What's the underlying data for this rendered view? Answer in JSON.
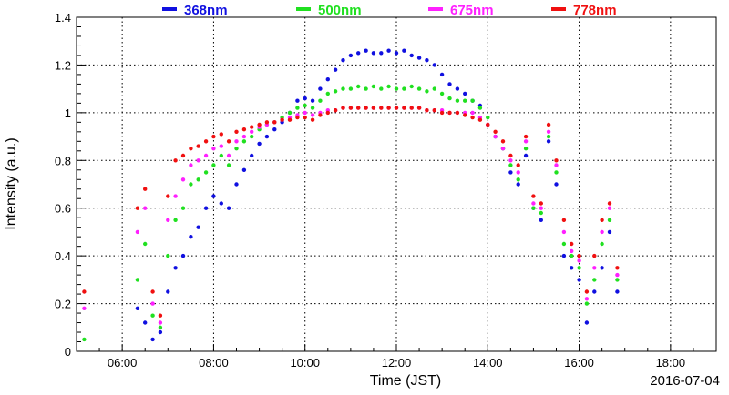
{
  "chart_data": {
    "type": "scatter",
    "xlabel": "Time (JST)",
    "ylabel": "Intensity (a.u.)",
    "date_label": "2016-07-04",
    "xlim": [
      "05:00",
      "19:00"
    ],
    "ylim": [
      0,
      1.4
    ],
    "x_ticks": [
      "06:00",
      "08:00",
      "10:00",
      "12:00",
      "14:00",
      "16:00",
      "18:00"
    ],
    "y_ticks": [
      "0",
      "0.2",
      "0.4",
      "0.6",
      "0.8",
      "1",
      "1.2",
      "1.4"
    ],
    "grid": true,
    "legend_position": "top",
    "series": [
      {
        "name": "368nm",
        "color": "#1010e0",
        "points": [
          [
            "06:20",
            0.18
          ],
          [
            "06:30",
            0.12
          ],
          [
            "06:40",
            0.05
          ],
          [
            "06:50",
            0.08
          ],
          [
            "07:00",
            0.25
          ],
          [
            "07:10",
            0.35
          ],
          [
            "07:20",
            0.4
          ],
          [
            "07:30",
            0.48
          ],
          [
            "07:40",
            0.52
          ],
          [
            "07:50",
            0.6
          ],
          [
            "08:00",
            0.65
          ],
          [
            "08:10",
            0.62
          ],
          [
            "08:20",
            0.6
          ],
          [
            "08:30",
            0.7
          ],
          [
            "08:40",
            0.76
          ],
          [
            "08:50",
            0.82
          ],
          [
            "09:00",
            0.87
          ],
          [
            "09:10",
            0.9
          ],
          [
            "09:20",
            0.93
          ],
          [
            "09:30",
            0.96
          ],
          [
            "09:40",
            1.0
          ],
          [
            "09:50",
            1.05
          ],
          [
            "10:00",
            1.06
          ],
          [
            "10:10",
            1.05
          ],
          [
            "10:20",
            1.1
          ],
          [
            "10:30",
            1.14
          ],
          [
            "10:40",
            1.18
          ],
          [
            "10:50",
            1.22
          ],
          [
            "11:00",
            1.24
          ],
          [
            "11:10",
            1.25
          ],
          [
            "11:20",
            1.26
          ],
          [
            "11:30",
            1.25
          ],
          [
            "11:40",
            1.25
          ],
          [
            "11:50",
            1.26
          ],
          [
            "12:00",
            1.25
          ],
          [
            "12:10",
            1.26
          ],
          [
            "12:20",
            1.24
          ],
          [
            "12:30",
            1.23
          ],
          [
            "12:40",
            1.22
          ],
          [
            "12:50",
            1.2
          ],
          [
            "13:00",
            1.16
          ],
          [
            "13:10",
            1.12
          ],
          [
            "13:20",
            1.1
          ],
          [
            "13:30",
            1.08
          ],
          [
            "13:40",
            1.05
          ],
          [
            "13:50",
            1.03
          ],
          [
            "14:00",
            0.95
          ],
          [
            "14:10",
            0.9
          ],
          [
            "14:20",
            0.85
          ],
          [
            "14:30",
            0.75
          ],
          [
            "14:40",
            0.7
          ],
          [
            "14:50",
            0.82
          ],
          [
            "15:00",
            0.6
          ],
          [
            "15:10",
            0.55
          ],
          [
            "15:20",
            0.88
          ],
          [
            "15:30",
            0.7
          ],
          [
            "15:40",
            0.4
          ],
          [
            "15:50",
            0.35
          ],
          [
            "16:00",
            0.3
          ],
          [
            "16:10",
            0.12
          ],
          [
            "16:20",
            0.25
          ],
          [
            "16:30",
            0.35
          ],
          [
            "16:40",
            0.5
          ],
          [
            "16:50",
            0.25
          ]
        ]
      },
      {
        "name": "500nm",
        "color": "#20e020",
        "points": [
          [
            "05:10",
            0.05
          ],
          [
            "06:20",
            0.3
          ],
          [
            "06:30",
            0.45
          ],
          [
            "06:40",
            0.15
          ],
          [
            "06:50",
            0.1
          ],
          [
            "07:00",
            0.4
          ],
          [
            "07:10",
            0.55
          ],
          [
            "07:20",
            0.6
          ],
          [
            "07:30",
            0.7
          ],
          [
            "07:40",
            0.72
          ],
          [
            "07:50",
            0.75
          ],
          [
            "08:00",
            0.78
          ],
          [
            "08:10",
            0.82
          ],
          [
            "08:20",
            0.78
          ],
          [
            "08:30",
            0.85
          ],
          [
            "08:40",
            0.88
          ],
          [
            "08:50",
            0.9
          ],
          [
            "09:00",
            0.93
          ],
          [
            "09:10",
            0.95
          ],
          [
            "09:20",
            0.96
          ],
          [
            "09:30",
            0.98
          ],
          [
            "09:40",
            1.0
          ],
          [
            "09:50",
            1.02
          ],
          [
            "10:00",
            1.03
          ],
          [
            "10:10",
            1.02
          ],
          [
            "10:20",
            1.05
          ],
          [
            "10:30",
            1.08
          ],
          [
            "10:40",
            1.09
          ],
          [
            "10:50",
            1.1
          ],
          [
            "11:00",
            1.1
          ],
          [
            "11:10",
            1.11
          ],
          [
            "11:20",
            1.1
          ],
          [
            "11:30",
            1.11
          ],
          [
            "11:40",
            1.1
          ],
          [
            "11:50",
            1.11
          ],
          [
            "12:00",
            1.1
          ],
          [
            "12:10",
            1.1
          ],
          [
            "12:20",
            1.11
          ],
          [
            "12:30",
            1.1
          ],
          [
            "12:40",
            1.09
          ],
          [
            "12:50",
            1.1
          ],
          [
            "13:00",
            1.08
          ],
          [
            "13:10",
            1.06
          ],
          [
            "13:20",
            1.05
          ],
          [
            "13:30",
            1.05
          ],
          [
            "13:40",
            1.05
          ],
          [
            "13:50",
            1.02
          ],
          [
            "14:00",
            0.98
          ],
          [
            "14:10",
            0.9
          ],
          [
            "14:20",
            0.85
          ],
          [
            "14:30",
            0.78
          ],
          [
            "14:40",
            0.72
          ],
          [
            "14:50",
            0.85
          ],
          [
            "15:00",
            0.6
          ],
          [
            "15:10",
            0.58
          ],
          [
            "15:20",
            0.9
          ],
          [
            "15:30",
            0.75
          ],
          [
            "15:40",
            0.45
          ],
          [
            "15:50",
            0.4
          ],
          [
            "16:00",
            0.35
          ],
          [
            "16:10",
            0.2
          ],
          [
            "16:20",
            0.3
          ],
          [
            "16:30",
            0.45
          ],
          [
            "16:40",
            0.55
          ],
          [
            "16:50",
            0.3
          ]
        ]
      },
      {
        "name": "675nm",
        "color": "#ff20ff",
        "points": [
          [
            "05:10",
            0.18
          ],
          [
            "06:20",
            0.5
          ],
          [
            "06:30",
            0.6
          ],
          [
            "06:40",
            0.2
          ],
          [
            "06:50",
            0.12
          ],
          [
            "07:00",
            0.55
          ],
          [
            "07:10",
            0.65
          ],
          [
            "07:20",
            0.72
          ],
          [
            "07:30",
            0.78
          ],
          [
            "07:40",
            0.8
          ],
          [
            "07:50",
            0.82
          ],
          [
            "08:00",
            0.85
          ],
          [
            "08:10",
            0.86
          ],
          [
            "08:20",
            0.82
          ],
          [
            "08:30",
            0.88
          ],
          [
            "08:40",
            0.9
          ],
          [
            "08:50",
            0.92
          ],
          [
            "09:00",
            0.94
          ],
          [
            "09:10",
            0.95
          ],
          [
            "09:20",
            0.96
          ],
          [
            "09:30",
            0.97
          ],
          [
            "09:40",
            0.98
          ],
          [
            "09:50",
            0.99
          ],
          [
            "10:00",
            1.0
          ],
          [
            "10:10",
            0.99
          ],
          [
            "10:20",
            1.0
          ],
          [
            "10:30",
            1.01
          ],
          [
            "10:40",
            1.01
          ],
          [
            "10:50",
            1.02
          ],
          [
            "11:00",
            1.02
          ],
          [
            "11:10",
            1.02
          ],
          [
            "11:20",
            1.02
          ],
          [
            "11:30",
            1.02
          ],
          [
            "11:40",
            1.02
          ],
          [
            "11:50",
            1.02
          ],
          [
            "12:00",
            1.02
          ],
          [
            "12:10",
            1.02
          ],
          [
            "12:20",
            1.02
          ],
          [
            "12:30",
            1.02
          ],
          [
            "12:40",
            1.01
          ],
          [
            "12:50",
            1.01
          ],
          [
            "13:00",
            1.01
          ],
          [
            "13:10",
            1.0
          ],
          [
            "13:20",
            1.0
          ],
          [
            "13:30",
            1.0
          ],
          [
            "13:40",
            1.0
          ],
          [
            "13:50",
            0.98
          ],
          [
            "14:00",
            0.95
          ],
          [
            "14:10",
            0.9
          ],
          [
            "14:20",
            0.85
          ],
          [
            "14:30",
            0.8
          ],
          [
            "14:40",
            0.75
          ],
          [
            "14:50",
            0.88
          ],
          [
            "15:00",
            0.62
          ],
          [
            "15:10",
            0.6
          ],
          [
            "15:20",
            0.92
          ],
          [
            "15:30",
            0.78
          ],
          [
            "15:40",
            0.5
          ],
          [
            "15:50",
            0.42
          ],
          [
            "16:00",
            0.38
          ],
          [
            "16:10",
            0.22
          ],
          [
            "16:20",
            0.35
          ],
          [
            "16:30",
            0.5
          ],
          [
            "16:40",
            0.6
          ],
          [
            "16:50",
            0.32
          ]
        ]
      },
      {
        "name": "778nm",
        "color": "#f01010",
        "points": [
          [
            "05:10",
            0.25
          ],
          [
            "06:20",
            0.6
          ],
          [
            "06:30",
            0.68
          ],
          [
            "06:40",
            0.25
          ],
          [
            "06:50",
            0.15
          ],
          [
            "07:00",
            0.65
          ],
          [
            "07:10",
            0.8
          ],
          [
            "07:20",
            0.82
          ],
          [
            "07:30",
            0.85
          ],
          [
            "07:40",
            0.86
          ],
          [
            "07:50",
            0.88
          ],
          [
            "08:00",
            0.9
          ],
          [
            "08:10",
            0.91
          ],
          [
            "08:20",
            0.88
          ],
          [
            "08:30",
            0.92
          ],
          [
            "08:40",
            0.93
          ],
          [
            "08:50",
            0.94
          ],
          [
            "09:00",
            0.95
          ],
          [
            "09:10",
            0.96
          ],
          [
            "09:20",
            0.96
          ],
          [
            "09:30",
            0.97
          ],
          [
            "09:40",
            0.97
          ],
          [
            "09:50",
            0.98
          ],
          [
            "10:00",
            0.98
          ],
          [
            "10:10",
            0.97
          ],
          [
            "10:20",
            0.99
          ],
          [
            "10:30",
            1.0
          ],
          [
            "10:40",
            1.01
          ],
          [
            "10:50",
            1.02
          ],
          [
            "11:00",
            1.02
          ],
          [
            "11:10",
            1.02
          ],
          [
            "11:20",
            1.02
          ],
          [
            "11:30",
            1.02
          ],
          [
            "11:40",
            1.02
          ],
          [
            "11:50",
            1.02
          ],
          [
            "12:00",
            1.02
          ],
          [
            "12:10",
            1.02
          ],
          [
            "12:20",
            1.02
          ],
          [
            "12:30",
            1.02
          ],
          [
            "12:40",
            1.01
          ],
          [
            "12:50",
            1.01
          ],
          [
            "13:00",
            1.0
          ],
          [
            "13:10",
            1.0
          ],
          [
            "13:20",
            1.0
          ],
          [
            "13:30",
            0.99
          ],
          [
            "13:40",
            0.98
          ],
          [
            "13:50",
            0.97
          ],
          [
            "14:00",
            0.95
          ],
          [
            "14:10",
            0.92
          ],
          [
            "14:20",
            0.88
          ],
          [
            "14:30",
            0.82
          ],
          [
            "14:40",
            0.78
          ],
          [
            "14:50",
            0.9
          ],
          [
            "15:00",
            0.65
          ],
          [
            "15:10",
            0.62
          ],
          [
            "15:20",
            0.95
          ],
          [
            "15:30",
            0.8
          ],
          [
            "15:40",
            0.55
          ],
          [
            "15:50",
            0.45
          ],
          [
            "16:00",
            0.4
          ],
          [
            "16:10",
            0.25
          ],
          [
            "16:20",
            0.4
          ],
          [
            "16:30",
            0.55
          ],
          [
            "16:40",
            0.62
          ],
          [
            "16:50",
            0.35
          ]
        ]
      }
    ]
  }
}
